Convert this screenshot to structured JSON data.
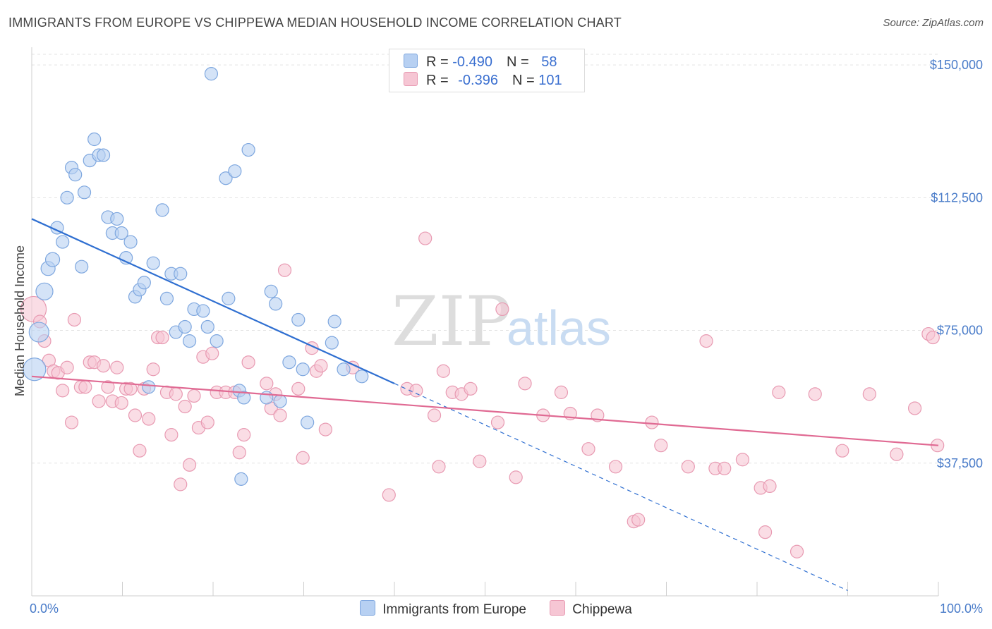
{
  "title": "IMMIGRANTS FROM EUROPE VS CHIPPEWA MEDIAN HOUSEHOLD INCOME CORRELATION CHART",
  "source": "Source: ZipAtlas.com",
  "watermark": {
    "zip": "ZIP",
    "atlas": "atlas"
  },
  "legend": {
    "rows": [
      {
        "r_label": "R = ",
        "r_value": "-0.490",
        "n_label": "N = ",
        "n_value": "58"
      },
      {
        "r_label": "R = ",
        "r_value": "-0.396",
        "n_label": "N = ",
        "n_value": "101"
      }
    ]
  },
  "colors": {
    "blue_fill": "#b7d0f2",
    "blue_stroke": "#7ea7df",
    "blue_line": "#2f6fd1",
    "pink_fill": "#f6c6d4",
    "pink_stroke": "#e89ab2",
    "pink_line": "#e06a93",
    "tick_label": "#4a7cc9"
  },
  "chart_data": {
    "type": "scatter",
    "xlabel": "",
    "ylabel": "Median Household Income",
    "x_tick_labels": [
      "0.0%",
      "100.0%"
    ],
    "y_tick_labels": [
      "$150,000",
      "$112,500",
      "$75,000",
      "$37,500"
    ],
    "y_ticks": [
      150000,
      112500,
      75000,
      37500
    ],
    "xlim": [
      0,
      100
    ],
    "ylim": [
      0,
      155000
    ],
    "grid": true,
    "legend_placement": "top-center",
    "series": [
      {
        "name": "Immigrants from Europe",
        "color": "#b7d0f2",
        "r": -0.49,
        "n": 58,
        "trend": {
          "x0": 0,
          "y0": 106500,
          "x1": 40,
          "y1": 60000,
          "dash_to_x": 90,
          "dash_to_y": 1500
        },
        "points": [
          [
            0.3,
            64000,
            16
          ],
          [
            0.8,
            74500,
            14
          ],
          [
            1.4,
            86000,
            12
          ],
          [
            1.8,
            92500,
            10
          ],
          [
            2.3,
            95000,
            10
          ],
          [
            2.8,
            104000,
            9
          ],
          [
            3.4,
            100000,
            9
          ],
          [
            3.9,
            112500,
            9
          ],
          [
            4.4,
            121000,
            9
          ],
          [
            4.8,
            119000,
            9
          ],
          [
            5.8,
            114000,
            9
          ],
          [
            5.5,
            93000,
            9
          ],
          [
            6.4,
            123000,
            9
          ],
          [
            6.9,
            129000,
            9
          ],
          [
            7.4,
            124500,
            9
          ],
          [
            7.9,
            124500,
            9
          ],
          [
            8.4,
            107000,
            9
          ],
          [
            8.9,
            102500,
            9
          ],
          [
            9.4,
            106500,
            9
          ],
          [
            9.9,
            102500,
            9
          ],
          [
            10.4,
            95500,
            9
          ],
          [
            10.9,
            100000,
            9
          ],
          [
            11.4,
            84500,
            9
          ],
          [
            11.9,
            86500,
            9
          ],
          [
            12.4,
            88500,
            9
          ],
          [
            12.9,
            59000,
            9
          ],
          [
            13.4,
            94000,
            9
          ],
          [
            14.4,
            109000,
            9
          ],
          [
            14.9,
            84000,
            9
          ],
          [
            15.4,
            91000,
            9
          ],
          [
            15.9,
            74500,
            9
          ],
          [
            16.4,
            91000,
            9
          ],
          [
            16.9,
            76000,
            9
          ],
          [
            17.4,
            72000,
            9
          ],
          [
            17.9,
            81000,
            9
          ],
          [
            18.9,
            80500,
            9
          ],
          [
            19.4,
            76000,
            9
          ],
          [
            19.8,
            147500,
            9
          ],
          [
            20.4,
            72000,
            9
          ],
          [
            21.4,
            118000,
            9
          ],
          [
            21.7,
            84000,
            9
          ],
          [
            22.4,
            120000,
            9
          ],
          [
            22.9,
            58000,
            9
          ],
          [
            23.1,
            33000,
            9
          ],
          [
            23.4,
            56000,
            9
          ],
          [
            23.9,
            126000,
            9
          ],
          [
            25.9,
            56000,
            9
          ],
          [
            26.4,
            86000,
            9
          ],
          [
            26.9,
            82500,
            9
          ],
          [
            27.4,
            55000,
            9
          ],
          [
            28.4,
            66000,
            9
          ],
          [
            29.4,
            78000,
            9
          ],
          [
            29.9,
            64000,
            9
          ],
          [
            30.4,
            49000,
            9
          ],
          [
            33.1,
            71500,
            9
          ],
          [
            33.4,
            77500,
            9
          ],
          [
            34.4,
            64000,
            9
          ],
          [
            36.4,
            62000,
            9
          ]
        ]
      },
      {
        "name": "Chippewa",
        "color": "#f6c6d4",
        "r": -0.396,
        "n": 101,
        "trend": {
          "x0": 0,
          "y0": 62000,
          "x1": 100,
          "y1": 42500
        },
        "points": [
          [
            0.2,
            81000,
            18
          ],
          [
            0.9,
            77500,
            9
          ],
          [
            1.4,
            72000,
            9
          ],
          [
            1.9,
            66500,
            9
          ],
          [
            2.4,
            63500,
            9
          ],
          [
            2.9,
            63000,
            9
          ],
          [
            3.4,
            58000,
            9
          ],
          [
            3.9,
            64500,
            9
          ],
          [
            4.4,
            49000,
            9
          ],
          [
            4.7,
            78000,
            9
          ],
          [
            5.4,
            59000,
            9
          ],
          [
            5.9,
            59000,
            9
          ],
          [
            6.4,
            66000,
            9
          ],
          [
            6.9,
            66000,
            9
          ],
          [
            7.4,
            55000,
            9
          ],
          [
            7.9,
            65000,
            9
          ],
          [
            8.4,
            59000,
            9
          ],
          [
            8.9,
            55000,
            9
          ],
          [
            9.4,
            64500,
            9
          ],
          [
            9.9,
            54500,
            9
          ],
          [
            10.4,
            58500,
            9
          ],
          [
            10.9,
            58500,
            9
          ],
          [
            11.4,
            51000,
            9
          ],
          [
            11.9,
            41000,
            9
          ],
          [
            12.4,
            58500,
            9
          ],
          [
            12.9,
            50000,
            9
          ],
          [
            13.4,
            64000,
            9
          ],
          [
            13.9,
            73000,
            9
          ],
          [
            14.4,
            73000,
            9
          ],
          [
            14.9,
            57500,
            9
          ],
          [
            15.4,
            45500,
            9
          ],
          [
            15.9,
            57000,
            9
          ],
          [
            16.4,
            31500,
            9
          ],
          [
            16.9,
            53500,
            9
          ],
          [
            17.4,
            37000,
            9
          ],
          [
            17.9,
            56500,
            9
          ],
          [
            18.4,
            47500,
            9
          ],
          [
            18.9,
            67500,
            9
          ],
          [
            19.4,
            49000,
            9
          ],
          [
            19.9,
            68500,
            9
          ],
          [
            20.4,
            57500,
            9
          ],
          [
            21.4,
            57500,
            9
          ],
          [
            22.4,
            57500,
            9
          ],
          [
            22.9,
            40500,
            9
          ],
          [
            23.4,
            45500,
            9
          ],
          [
            23.9,
            66000,
            9
          ],
          [
            25.9,
            60000,
            9
          ],
          [
            26.4,
            53000,
            9
          ],
          [
            26.9,
            57000,
            9
          ],
          [
            27.4,
            51000,
            9
          ],
          [
            27.9,
            92000,
            9
          ],
          [
            29.4,
            58500,
            9
          ],
          [
            29.9,
            39000,
            9
          ],
          [
            30.9,
            70000,
            9
          ],
          [
            31.4,
            63500,
            9
          ],
          [
            31.9,
            65000,
            9
          ],
          [
            32.4,
            47000,
            9
          ],
          [
            35.4,
            64500,
            9
          ],
          [
            39.4,
            28500,
            9
          ],
          [
            41.4,
            58500,
            9
          ],
          [
            42.4,
            58000,
            9
          ],
          [
            43.4,
            101000,
            9
          ],
          [
            44.4,
            51000,
            9
          ],
          [
            44.9,
            36500,
            9
          ],
          [
            45.4,
            63500,
            9
          ],
          [
            46.4,
            57500,
            9
          ],
          [
            47.4,
            57000,
            9
          ],
          [
            48.4,
            58500,
            9
          ],
          [
            49.4,
            38000,
            9
          ],
          [
            51.4,
            49000,
            9
          ],
          [
            51.9,
            81000,
            9
          ],
          [
            53.4,
            33500,
            9
          ],
          [
            54.4,
            60000,
            9
          ],
          [
            56.4,
            51000,
            9
          ],
          [
            58.4,
            57500,
            9
          ],
          [
            59.4,
            51500,
            9
          ],
          [
            61.4,
            41500,
            9
          ],
          [
            62.4,
            51000,
            9
          ],
          [
            64.4,
            36500,
            9
          ],
          [
            66.4,
            21000,
            9
          ],
          [
            66.9,
            21500,
            9
          ],
          [
            68.4,
            49000,
            9
          ],
          [
            69.4,
            42500,
            9
          ],
          [
            72.4,
            36500,
            9
          ],
          [
            74.4,
            72000,
            9
          ],
          [
            75.4,
            36000,
            9
          ],
          [
            76.4,
            36000,
            9
          ],
          [
            78.4,
            38500,
            9
          ],
          [
            80.4,
            30500,
            9
          ],
          [
            80.9,
            18000,
            9
          ],
          [
            81.4,
            31000,
            9
          ],
          [
            82.4,
            57500,
            9
          ],
          [
            84.4,
            12500,
            9
          ],
          [
            86.4,
            57000,
            9
          ],
          [
            89.4,
            41000,
            9
          ],
          [
            92.4,
            57000,
            9
          ],
          [
            95.4,
            40000,
            9
          ],
          [
            97.4,
            53000,
            9
          ],
          [
            98.9,
            74000,
            9
          ],
          [
            99.4,
            73000,
            9
          ],
          [
            99.9,
            42500,
            9
          ]
        ]
      }
    ]
  }
}
